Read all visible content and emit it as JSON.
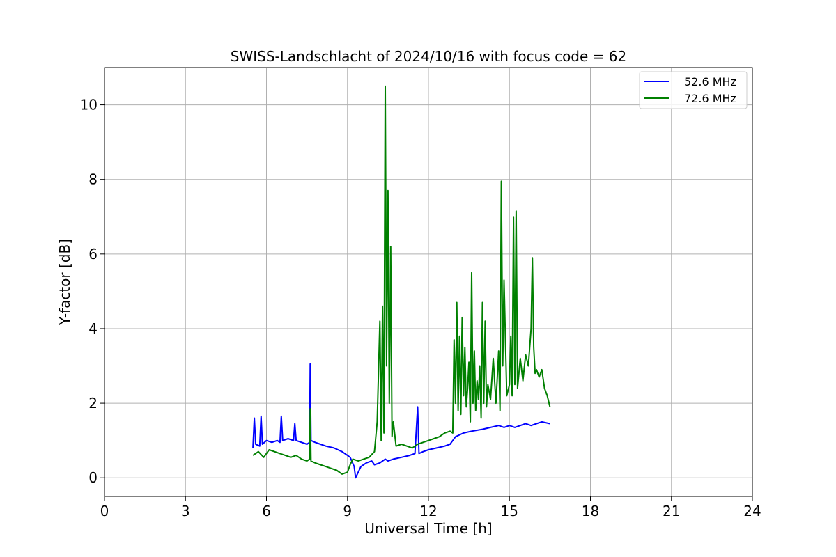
{
  "chart_data": {
    "type": "line",
    "title": "SWISS-Landschlacht of 2024/10/16 with focus code = 62",
    "xlabel": "Universal Time [h]",
    "ylabel": "Y-factor [dB]",
    "xlim": [
      0,
      24
    ],
    "ylim": [
      -0.5,
      11
    ],
    "xticks": [
      0,
      3,
      6,
      9,
      12,
      15,
      18,
      21,
      24
    ],
    "yticks": [
      0,
      2,
      4,
      6,
      8,
      10
    ],
    "grid": true,
    "legend": "top-right",
    "series": [
      {
        "name": "52.6 MHz",
        "color": "#0000ff",
        "x": [
          5.5,
          5.55,
          5.6,
          5.75,
          5.8,
          5.85,
          6.0,
          6.2,
          6.4,
          6.5,
          6.55,
          6.6,
          6.8,
          7.0,
          7.05,
          7.1,
          7.3,
          7.5,
          7.6,
          7.62,
          7.65,
          7.8,
          8.0,
          8.2,
          8.5,
          8.8,
          9.0,
          9.1,
          9.25,
          9.3,
          9.5,
          9.7,
          9.9,
          10.0,
          10.2,
          10.4,
          10.5,
          10.7,
          11.0,
          11.3,
          11.5,
          11.6,
          11.65,
          11.8,
          12.0,
          12.3,
          12.6,
          12.8,
          13.0,
          13.3,
          13.6,
          14.0,
          14.3,
          14.6,
          14.8,
          15.0,
          15.2,
          15.4,
          15.6,
          15.8,
          16.0,
          16.2,
          16.5
        ],
        "y": [
          0.8,
          1.6,
          0.9,
          0.85,
          1.65,
          0.9,
          1.0,
          0.95,
          1.0,
          0.95,
          1.65,
          1.0,
          1.05,
          1.0,
          1.45,
          1.0,
          0.95,
          0.9,
          0.95,
          3.05,
          1.0,
          0.95,
          0.9,
          0.85,
          0.8,
          0.7,
          0.6,
          0.55,
          0.3,
          0.0,
          0.3,
          0.4,
          0.45,
          0.35,
          0.4,
          0.5,
          0.45,
          0.5,
          0.55,
          0.6,
          0.65,
          1.9,
          0.65,
          0.7,
          0.75,
          0.8,
          0.85,
          0.9,
          1.1,
          1.2,
          1.25,
          1.3,
          1.35,
          1.4,
          1.35,
          1.4,
          1.35,
          1.4,
          1.45,
          1.4,
          1.45,
          1.5,
          1.45
        ]
      },
      {
        "name": "72.6 MHz",
        "color": "#008000",
        "x": [
          5.5,
          5.7,
          5.9,
          6.1,
          6.3,
          6.5,
          6.7,
          6.9,
          7.1,
          7.3,
          7.5,
          7.6,
          7.62,
          7.65,
          7.8,
          8.0,
          8.2,
          8.4,
          8.6,
          8.8,
          9.0,
          9.1,
          9.2,
          9.4,
          9.6,
          9.8,
          10.0,
          10.1,
          10.2,
          10.25,
          10.3,
          10.35,
          10.4,
          10.45,
          10.5,
          10.55,
          10.6,
          10.65,
          10.7,
          10.8,
          11.0,
          11.2,
          11.4,
          11.6,
          11.8,
          12.0,
          12.2,
          12.4,
          12.6,
          12.8,
          12.9,
          12.95,
          13.0,
          13.05,
          13.1,
          13.15,
          13.2,
          13.25,
          13.3,
          13.35,
          13.4,
          13.45,
          13.5,
          13.55,
          13.6,
          13.65,
          13.7,
          13.75,
          13.8,
          13.85,
          13.9,
          13.95,
          14.0,
          14.05,
          14.1,
          14.15,
          14.2,
          14.3,
          14.4,
          14.5,
          14.6,
          14.65,
          14.7,
          14.75,
          14.8,
          14.9,
          15.0,
          15.05,
          15.1,
          15.15,
          15.2,
          15.25,
          15.3,
          15.4,
          15.5,
          15.6,
          15.7,
          15.8,
          15.85,
          15.9,
          15.95,
          16.0,
          16.1,
          16.2,
          16.3,
          16.4,
          16.5
        ],
        "y": [
          0.6,
          0.7,
          0.55,
          0.75,
          0.7,
          0.65,
          0.6,
          0.55,
          0.6,
          0.5,
          0.45,
          0.5,
          1.85,
          0.45,
          0.4,
          0.35,
          0.3,
          0.25,
          0.2,
          0.1,
          0.15,
          0.35,
          0.5,
          0.45,
          0.5,
          0.55,
          0.7,
          1.5,
          4.2,
          1.0,
          4.6,
          1.2,
          10.5,
          3.0,
          7.7,
          2.0,
          6.2,
          1.1,
          1.5,
          0.85,
          0.9,
          0.85,
          0.8,
          0.9,
          0.95,
          1.0,
          1.05,
          1.1,
          1.2,
          1.25,
          1.2,
          3.7,
          2.0,
          4.7,
          1.8,
          3.8,
          1.7,
          4.3,
          2.2,
          3.5,
          1.9,
          2.4,
          3.1,
          1.5,
          5.5,
          2.0,
          3.4,
          1.8,
          2.6,
          2.1,
          3.0,
          1.6,
          4.7,
          2.0,
          4.2,
          1.9,
          2.5,
          2.1,
          3.2,
          2.0,
          3.4,
          1.8,
          7.95,
          3.0,
          5.3,
          2.2,
          2.5,
          3.8,
          2.2,
          7.0,
          2.5,
          7.15,
          2.4,
          3.2,
          2.6,
          3.3,
          3.0,
          4.0,
          5.9,
          3.5,
          2.8,
          2.9,
          2.7,
          2.9,
          2.4,
          2.2,
          1.9
        ]
      }
    ]
  }
}
